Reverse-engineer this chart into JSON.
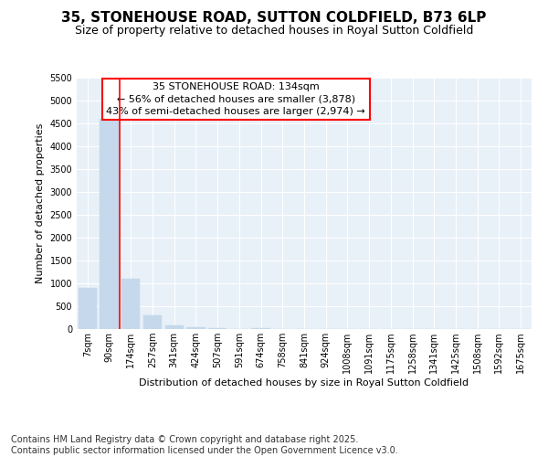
{
  "title_line1": "35, STONEHOUSE ROAD, SUTTON COLDFIELD, B73 6LP",
  "title_line2": "Size of property relative to detached houses in Royal Sutton Coldfield",
  "xlabel": "Distribution of detached houses by size in Royal Sutton Coldfield",
  "ylabel": "Number of detached properties",
  "annotation_title": "35 STONEHOUSE ROAD: 134sqm",
  "annotation_line2": "← 56% of detached houses are smaller (3,878)",
  "annotation_line3": "43% of semi-detached houses are larger (2,974) →",
  "bar_color": "#c5d8ec",
  "bar_edge_color": "#c5d8ec",
  "vline_color": "red",
  "annotation_box_color": "red",
  "background_color": "#e8f0f8",
  "grid_color": "white",
  "categories": [
    "7sqm",
    "90sqm",
    "174sqm",
    "257sqm",
    "341sqm",
    "424sqm",
    "507sqm",
    "591sqm",
    "674sqm",
    "758sqm",
    "841sqm",
    "924sqm",
    "1008sqm",
    "1091sqm",
    "1175sqm",
    "1258sqm",
    "1341sqm",
    "1425sqm",
    "1508sqm",
    "1592sqm",
    "1675sqm"
  ],
  "values": [
    900,
    4600,
    1100,
    300,
    80,
    50,
    30,
    0,
    30,
    0,
    0,
    0,
    0,
    0,
    0,
    0,
    0,
    0,
    0,
    0,
    0
  ],
  "ylim": [
    0,
    5500
  ],
  "yticks": [
    0,
    500,
    1000,
    1500,
    2000,
    2500,
    3000,
    3500,
    4000,
    4500,
    5000,
    5500
  ],
  "footer": "Contains HM Land Registry data © Crown copyright and database right 2025.\nContains public sector information licensed under the Open Government Licence v3.0.",
  "footer_fontsize": 7,
  "title_fontsize": 11,
  "subtitle_fontsize": 9,
  "ylabel_fontsize": 8,
  "xlabel_fontsize": 8,
  "tick_fontsize": 7,
  "ann_fontsize": 8
}
